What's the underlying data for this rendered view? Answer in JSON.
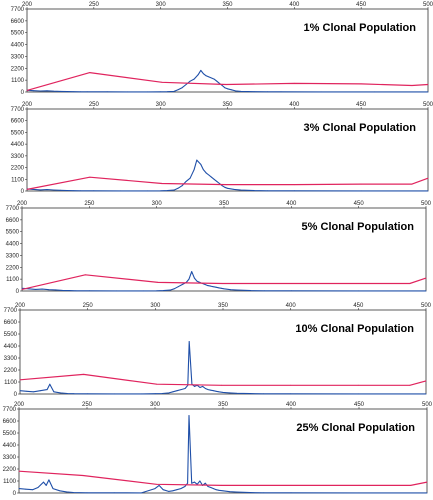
{
  "chart_data": [
    {
      "type": "line",
      "title": "1% Clonal Population",
      "x_ticks": [
        "200",
        "250",
        "300",
        "350",
        "400",
        "450",
        "500"
      ],
      "y_ticks": [
        "0",
        "1100",
        "2200",
        "3300",
        "4400",
        "5500",
        "6600",
        "7700"
      ],
      "xlim": [
        200,
        500
      ],
      "ylim": [
        0,
        7700
      ],
      "series": [
        {
          "color": "#1f4fa8",
          "points": [
            [
              200,
              160
            ],
            [
              205,
              120
            ],
            [
              210,
              90
            ],
            [
              215,
              110
            ],
            [
              220,
              70
            ],
            [
              225,
              60
            ],
            [
              230,
              40
            ],
            [
              235,
              30
            ],
            [
              240,
              20
            ],
            [
              245,
              15
            ],
            [
              260,
              15
            ],
            [
              275,
              10
            ],
            [
              290,
              10
            ],
            [
              300,
              20
            ],
            [
              305,
              30
            ],
            [
              310,
              60
            ],
            [
              313,
              200
            ],
            [
              316,
              400
            ],
            [
              319,
              700
            ],
            [
              322,
              1000
            ],
            [
              325,
              1200
            ],
            [
              328,
              1600
            ],
            [
              330,
              2000
            ],
            [
              332,
              1700
            ],
            [
              334,
              1500
            ],
            [
              336,
              1400
            ],
            [
              338,
              1300
            ],
            [
              340,
              1200
            ],
            [
              342,
              1000
            ],
            [
              344,
              800
            ],
            [
              346,
              600
            ],
            [
              348,
              400
            ],
            [
              350,
              300
            ],
            [
              353,
              200
            ],
            [
              356,
              100
            ],
            [
              360,
              60
            ],
            [
              365,
              40
            ],
            [
              370,
              30
            ],
            [
              380,
              20
            ],
            [
              390,
              15
            ],
            [
              420,
              10
            ],
            [
              460,
              10
            ],
            [
              500,
              10
            ]
          ]
        },
        {
          "color": "#e0245e",
          "points": [
            [
              200,
              150
            ],
            [
              247,
              1800
            ],
            [
              301,
              900
            ],
            [
              349,
              700
            ],
            [
              400,
              800
            ],
            [
              450,
              750
            ],
            [
              488,
              600
            ],
            [
              500,
              700
            ]
          ]
        }
      ]
    },
    {
      "type": "line",
      "title": "3% Clonal Population",
      "x_ticks": [
        "200",
        "250",
        "300",
        "350",
        "400",
        "450",
        "500"
      ],
      "y_ticks": [
        "0",
        "1100",
        "2200",
        "3300",
        "4400",
        "5500",
        "6600",
        "7700"
      ],
      "xlim": [
        200,
        500
      ],
      "ylim": [
        0,
        7700
      ],
      "series": [
        {
          "color": "#1f4fa8",
          "points": [
            [
              200,
              200
            ],
            [
              205,
              150
            ],
            [
              210,
              100
            ],
            [
              215,
              130
            ],
            [
              220,
              90
            ],
            [
              225,
              70
            ],
            [
              230,
              50
            ],
            [
              235,
              30
            ],
            [
              240,
              20
            ],
            [
              250,
              15
            ],
            [
              270,
              10
            ],
            [
              290,
              10
            ],
            [
              300,
              20
            ],
            [
              305,
              40
            ],
            [
              310,
              80
            ],
            [
              313,
              250
            ],
            [
              316,
              500
            ],
            [
              319,
              900
            ],
            [
              322,
              1200
            ],
            [
              325,
              2000
            ],
            [
              327,
              2900
            ],
            [
              330,
              2500
            ],
            [
              332,
              2000
            ],
            [
              334,
              1700
            ],
            [
              336,
              1500
            ],
            [
              338,
              1300
            ],
            [
              340,
              1100
            ],
            [
              342,
              900
            ],
            [
              344,
              700
            ],
            [
              346,
              500
            ],
            [
              348,
              350
            ],
            [
              350,
              250
            ],
            [
              355,
              150
            ],
            [
              360,
              80
            ],
            [
              370,
              40
            ],
            [
              380,
              20
            ],
            [
              400,
              15
            ],
            [
              450,
              10
            ],
            [
              500,
              10
            ]
          ]
        },
        {
          "color": "#e0245e",
          "points": [
            [
              200,
              150
            ],
            [
              247,
              1300
            ],
            [
              301,
              700
            ],
            [
              349,
              600
            ],
            [
              400,
              600
            ],
            [
              450,
              650
            ],
            [
              488,
              650
            ],
            [
              500,
              1200
            ]
          ]
        }
      ]
    },
    {
      "type": "line",
      "title": "5% Clonal Population",
      "x_ticks": [
        "200",
        "250",
        "300",
        "350",
        "400",
        "450",
        "500"
      ],
      "y_ticks": [
        "0",
        "1100",
        "2200",
        "3300",
        "4400",
        "5500",
        "6600",
        "7700"
      ],
      "xlim": [
        200,
        500
      ],
      "ylim": [
        0,
        7700
      ],
      "series": [
        {
          "color": "#1f4fa8",
          "points": [
            [
              200,
              250
            ],
            [
              205,
              200
            ],
            [
              210,
              150
            ],
            [
              215,
              180
            ],
            [
              220,
              120
            ],
            [
              225,
              100
            ],
            [
              230,
              60
            ],
            [
              235,
              40
            ],
            [
              240,
              20
            ],
            [
              250,
              15
            ],
            [
              270,
              10
            ],
            [
              290,
              10
            ],
            [
              300,
              20
            ],
            [
              305,
              40
            ],
            [
              310,
              80
            ],
            [
              313,
              200
            ],
            [
              316,
              400
            ],
            [
              319,
              600
            ],
            [
              322,
              800
            ],
            [
              324,
              1100
            ],
            [
              326,
              1800
            ],
            [
              328,
              1200
            ],
            [
              330,
              900
            ],
            [
              332,
              800
            ],
            [
              334,
              700
            ],
            [
              336,
              600
            ],
            [
              338,
              500
            ],
            [
              340,
              450
            ],
            [
              342,
              400
            ],
            [
              344,
              350
            ],
            [
              346,
              300
            ],
            [
              348,
              250
            ],
            [
              350,
              200
            ],
            [
              355,
              120
            ],
            [
              360,
              80
            ],
            [
              370,
              40
            ],
            [
              380,
              20
            ],
            [
              400,
              15
            ],
            [
              450,
              10
            ],
            [
              500,
              10
            ]
          ]
        },
        {
          "color": "#e0245e",
          "points": [
            [
              200,
              150
            ],
            [
              247,
              1500
            ],
            [
              301,
              800
            ],
            [
              349,
              700
            ],
            [
              400,
              700
            ],
            [
              450,
              700
            ],
            [
              488,
              700
            ],
            [
              500,
              1200
            ]
          ]
        }
      ]
    },
    {
      "type": "line",
      "title": "10% Clonal Population",
      "x_ticks": [
        "200",
        "250",
        "300",
        "350",
        "400",
        "450",
        "500"
      ],
      "y_ticks": [
        "0",
        "1100",
        "2200",
        "3300",
        "4400",
        "5500",
        "6600",
        "7700"
      ],
      "xlim": [
        200,
        500
      ],
      "ylim": [
        0,
        7700
      ],
      "series": [
        {
          "color": "#1f4fa8",
          "points": [
            [
              200,
              300
            ],
            [
              205,
              250
            ],
            [
              210,
              200
            ],
            [
              215,
              300
            ],
            [
              220,
              400
            ],
            [
              222,
              900
            ],
            [
              225,
              200
            ],
            [
              230,
              100
            ],
            [
              235,
              50
            ],
            [
              240,
              30
            ],
            [
              250,
              15
            ],
            [
              270,
              10
            ],
            [
              290,
              10
            ],
            [
              300,
              30
            ],
            [
              305,
              50
            ],
            [
              310,
              100
            ],
            [
              313,
              200
            ],
            [
              316,
              300
            ],
            [
              319,
              400
            ],
            [
              322,
              500
            ],
            [
              324,
              800
            ],
            [
              325,
              4800
            ],
            [
              327,
              900
            ],
            [
              329,
              700
            ],
            [
              331,
              800
            ],
            [
              333,
              600
            ],
            [
              335,
              700
            ],
            [
              337,
              500
            ],
            [
              339,
              400
            ],
            [
              341,
              350
            ],
            [
              343,
              300
            ],
            [
              345,
              250
            ],
            [
              347,
              200
            ],
            [
              350,
              150
            ],
            [
              355,
              100
            ],
            [
              360,
              60
            ],
            [
              370,
              40
            ],
            [
              380,
              20
            ],
            [
              400,
              15
            ],
            [
              450,
              10
            ],
            [
              500,
              10
            ]
          ]
        },
        {
          "color": "#e0245e",
          "points": [
            [
              200,
              1300
            ],
            [
              247,
              1800
            ],
            [
              301,
              900
            ],
            [
              349,
              800
            ],
            [
              400,
              800
            ],
            [
              450,
              800
            ],
            [
              488,
              800
            ],
            [
              500,
              1200
            ]
          ]
        }
      ]
    },
    {
      "type": "line",
      "title": "25% Clonal Population",
      "x_ticks": [
        "200",
        "250",
        "300",
        "350",
        "400",
        "450",
        "500"
      ],
      "y_ticks": [
        "0",
        "1100",
        "2200",
        "3300",
        "4400",
        "5500",
        "6600",
        "7700"
      ],
      "xlim": [
        200,
        500
      ],
      "ylim": [
        0,
        7700
      ],
      "series": [
        {
          "color": "#1f4fa8",
          "points": [
            [
              200,
              400
            ],
            [
              205,
              350
            ],
            [
              210,
              300
            ],
            [
              214,
              500
            ],
            [
              218,
              1000
            ],
            [
              220,
              700
            ],
            [
              222,
              1200
            ],
            [
              225,
              400
            ],
            [
              230,
              200
            ],
            [
              235,
              100
            ],
            [
              240,
              50
            ],
            [
              250,
              20
            ],
            [
              270,
              15
            ],
            [
              290,
              10
            ],
            [
              300,
              400
            ],
            [
              303,
              700
            ],
            [
              306,
              300
            ],
            [
              310,
              150
            ],
            [
              313,
              200
            ],
            [
              316,
              300
            ],
            [
              319,
              400
            ],
            [
              322,
              600
            ],
            [
              324,
              900
            ],
            [
              325,
              7100
            ],
            [
              327,
              900
            ],
            [
              329,
              1000
            ],
            [
              331,
              800
            ],
            [
              333,
              1100
            ],
            [
              335,
              700
            ],
            [
              337,
              900
            ],
            [
              339,
              600
            ],
            [
              341,
              500
            ],
            [
              343,
              400
            ],
            [
              345,
              300
            ],
            [
              347,
              250
            ],
            [
              350,
              200
            ],
            [
              355,
              120
            ],
            [
              360,
              80
            ],
            [
              370,
              40
            ],
            [
              380,
              20
            ],
            [
              400,
              15
            ],
            [
              450,
              10
            ],
            [
              500,
              10
            ]
          ]
        },
        {
          "color": "#e0245e",
          "points": [
            [
              200,
              2000
            ],
            [
              247,
              1600
            ],
            [
              301,
              800
            ],
            [
              349,
              700
            ],
            [
              400,
              700
            ],
            [
              450,
              700
            ],
            [
              488,
              700
            ],
            [
              500,
              1000
            ]
          ]
        }
      ]
    }
  ]
}
